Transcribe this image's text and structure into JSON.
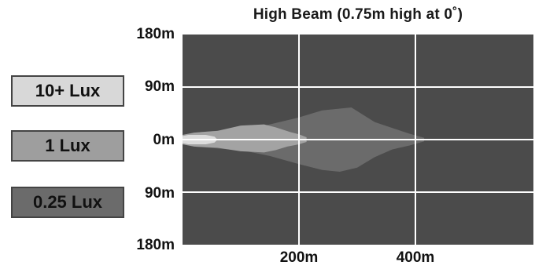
{
  "chart_data": {
    "type": "area",
    "title": "High Beam (0.75m high at 0˚)",
    "xlabel": "",
    "ylabel": "",
    "xlim": [
      0,
      400
    ],
    "ylim": [
      -180,
      180
    ],
    "y_tick_labels": [
      "180m",
      "90m",
      "0m",
      "90m",
      "180m"
    ],
    "y_tick_values": [
      180,
      90,
      0,
      -90,
      -180
    ],
    "x_tick_labels": [
      "200m",
      "400m"
    ],
    "x_tick_values": [
      200,
      400
    ],
    "grid": true,
    "legend_position": "left",
    "series": [
      {
        "name": "0.25 Lux",
        "color": "#6b6b6b",
        "outline": [
          [
            0,
            8
          ],
          [
            20,
            12
          ],
          [
            70,
            16
          ],
          [
            110,
            18
          ],
          [
            150,
            26
          ],
          [
            200,
            38
          ],
          [
            240,
            50
          ],
          [
            290,
            55
          ],
          [
            330,
            30
          ],
          [
            360,
            20
          ],
          [
            390,
            10
          ],
          [
            415,
            3
          ],
          [
            415,
            -3
          ],
          [
            390,
            -10
          ],
          [
            360,
            -17
          ],
          [
            330,
            -30
          ],
          [
            300,
            -48
          ],
          [
            270,
            -55
          ],
          [
            240,
            -52
          ],
          [
            200,
            -42
          ],
          [
            150,
            -28
          ],
          [
            110,
            -20
          ],
          [
            70,
            -16
          ],
          [
            20,
            -12
          ],
          [
            0,
            -8
          ]
        ]
      },
      {
        "name": "1 Lux",
        "color": "#a3a3a3",
        "outline": [
          [
            0,
            8
          ],
          [
            20,
            12
          ],
          [
            60,
            15
          ],
          [
            100,
            24
          ],
          [
            140,
            26
          ],
          [
            160,
            21
          ],
          [
            185,
            13
          ],
          [
            200,
            9
          ],
          [
            213,
            4
          ],
          [
            213,
            -4
          ],
          [
            200,
            -8
          ],
          [
            180,
            -12
          ],
          [
            160,
            -18
          ],
          [
            140,
            -22
          ],
          [
            100,
            -20
          ],
          [
            60,
            -14
          ],
          [
            20,
            -12
          ],
          [
            0,
            -8
          ]
        ]
      },
      {
        "name": "10+ Lux",
        "color": "#dcdcdc",
        "outline": [
          [
            0,
            6
          ],
          [
            10,
            8
          ],
          [
            40,
            8
          ],
          [
            55,
            5
          ],
          [
            60,
            0
          ],
          [
            55,
            -5
          ],
          [
            40,
            -8
          ],
          [
            10,
            -8
          ],
          [
            0,
            -6
          ]
        ]
      }
    ],
    "background_color": "#4b4b4b",
    "grid_color": "#ffffff"
  }
}
